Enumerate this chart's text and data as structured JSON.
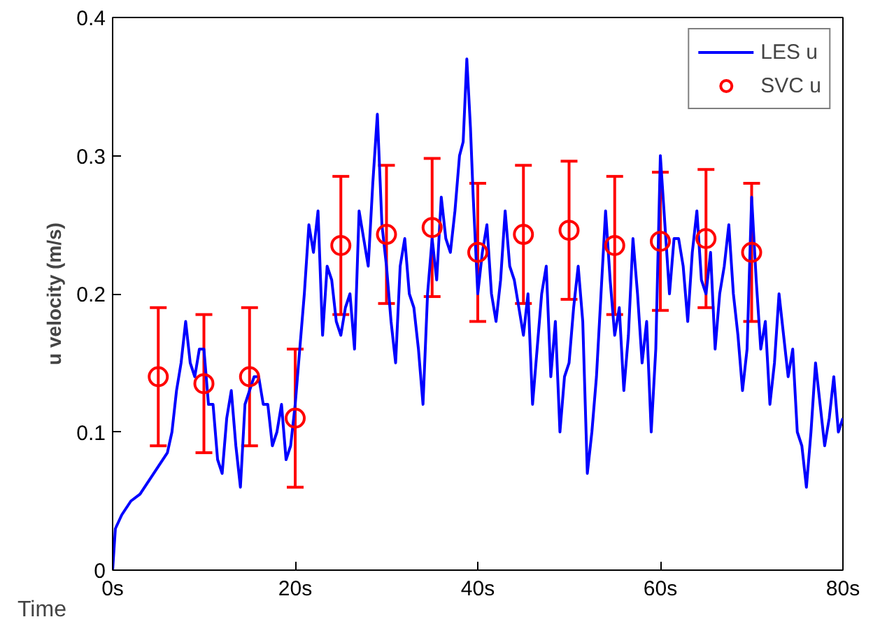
{
  "chart_data": {
    "type": "line",
    "xlabel": "Time",
    "ylabel": "u velocity (m/s)",
    "xlim": [
      0,
      80
    ],
    "ylim": [
      0,
      0.4
    ],
    "xticks": [
      {
        "value": 0,
        "label": "0s"
      },
      {
        "value": 20,
        "label": "20s"
      },
      {
        "value": 40,
        "label": "40s"
      },
      {
        "value": 60,
        "label": "60s"
      },
      {
        "value": 80,
        "label": "80s"
      }
    ],
    "yticks": [
      0,
      0.1,
      0.2,
      0.3,
      0.4
    ],
    "grid": false,
    "legend": "top right",
    "series": [
      {
        "name": "LES u",
        "color": "#0000ff",
        "marker": "none",
        "line_style": "solid",
        "x": [
          0,
          0.3,
          1,
          2,
          3,
          4,
          5,
          6,
          6.5,
          7,
          7.5,
          8,
          8.5,
          9,
          9.5,
          10,
          10.5,
          11,
          11.5,
          12,
          12.5,
          13,
          13.5,
          14,
          14.5,
          15,
          15.5,
          16,
          16.5,
          17,
          17.5,
          18,
          18.5,
          19,
          19.5,
          20,
          20.5,
          21,
          21.5,
          22,
          22.5,
          23,
          23.5,
          24,
          24.5,
          25,
          25.5,
          26,
          26.5,
          27,
          27.5,
          28,
          28.5,
          29,
          29.5,
          30,
          30.5,
          31,
          31.5,
          32,
          32.5,
          33,
          33.5,
          34,
          34.5,
          35,
          35.5,
          36,
          36.5,
          37,
          37.5,
          38,
          38.4,
          38.8,
          39.2,
          39.5,
          40,
          40.5,
          41,
          41.5,
          42,
          42.5,
          43,
          43.5,
          44,
          44.5,
          45,
          45.5,
          46,
          46.5,
          47,
          47.5,
          48,
          48.5,
          49,
          49.5,
          50,
          50.5,
          51,
          51.5,
          52,
          52.5,
          53,
          53.5,
          54,
          54.5,
          55,
          55.5,
          56,
          56.5,
          57,
          57.5,
          58,
          58.5,
          59,
          59.5,
          60,
          60.5,
          61,
          61.5,
          62,
          62.5,
          63,
          63.5,
          64,
          64.5,
          65,
          65.5,
          66,
          66.5,
          67,
          67.5,
          68,
          68.5,
          69,
          69.5,
          70,
          70.5,
          71,
          71.5,
          72,
          72.5,
          73,
          73.5,
          74,
          74.5,
          75,
          75.5,
          76,
          76.5,
          77,
          77.5,
          78,
          78.5,
          79,
          79.5,
          80
        ],
        "values": [
          0,
          0.03,
          0.04,
          0.05,
          0.055,
          0.065,
          0.075,
          0.085,
          0.1,
          0.13,
          0.15,
          0.18,
          0.15,
          0.14,
          0.16,
          0.16,
          0.12,
          0.12,
          0.08,
          0.07,
          0.11,
          0.13,
          0.09,
          0.06,
          0.12,
          0.13,
          0.14,
          0.14,
          0.12,
          0.12,
          0.09,
          0.1,
          0.12,
          0.08,
          0.09,
          0.12,
          0.16,
          0.2,
          0.25,
          0.23,
          0.26,
          0.17,
          0.22,
          0.21,
          0.18,
          0.17,
          0.19,
          0.2,
          0.16,
          0.26,
          0.24,
          0.22,
          0.28,
          0.33,
          0.25,
          0.22,
          0.18,
          0.15,
          0.22,
          0.24,
          0.2,
          0.19,
          0.16,
          0.12,
          0.2,
          0.24,
          0.21,
          0.27,
          0.24,
          0.23,
          0.26,
          0.3,
          0.31,
          0.37,
          0.32,
          0.27,
          0.2,
          0.23,
          0.25,
          0.2,
          0.18,
          0.21,
          0.26,
          0.22,
          0.21,
          0.19,
          0.17,
          0.2,
          0.12,
          0.16,
          0.2,
          0.22,
          0.14,
          0.18,
          0.1,
          0.14,
          0.15,
          0.19,
          0.22,
          0.18,
          0.07,
          0.1,
          0.14,
          0.2,
          0.26,
          0.21,
          0.17,
          0.19,
          0.13,
          0.17,
          0.24,
          0.2,
          0.15,
          0.18,
          0.1,
          0.16,
          0.3,
          0.25,
          0.2,
          0.24,
          0.24,
          0.22,
          0.18,
          0.23,
          0.26,
          0.21,
          0.2,
          0.23,
          0.16,
          0.2,
          0.22,
          0.25,
          0.2,
          0.17,
          0.13,
          0.16,
          0.27,
          0.21,
          0.16,
          0.18,
          0.12,
          0.15,
          0.2,
          0.17,
          0.14,
          0.16,
          0.1,
          0.09,
          0.06,
          0.1,
          0.15,
          0.12,
          0.09,
          0.11,
          0.14,
          0.1,
          0.11
        ]
      },
      {
        "name": "SVC u",
        "type": "scatter",
        "color": "#ff0000",
        "marker": "circle",
        "x": [
          5,
          10,
          15,
          20,
          25,
          30,
          35,
          40,
          45,
          50,
          55,
          60,
          65,
          70
        ],
        "values": [
          0.14,
          0.135,
          0.14,
          0.11,
          0.235,
          0.243,
          0.248,
          0.23,
          0.243,
          0.246,
          0.235,
          0.238,
          0.24,
          0.23
        ],
        "errors": [
          0.05,
          0.05,
          0.05,
          0.05,
          0.05,
          0.05,
          0.05,
          0.05,
          0.05,
          0.05,
          0.05,
          0.05,
          0.05,
          0.05
        ]
      }
    ]
  }
}
